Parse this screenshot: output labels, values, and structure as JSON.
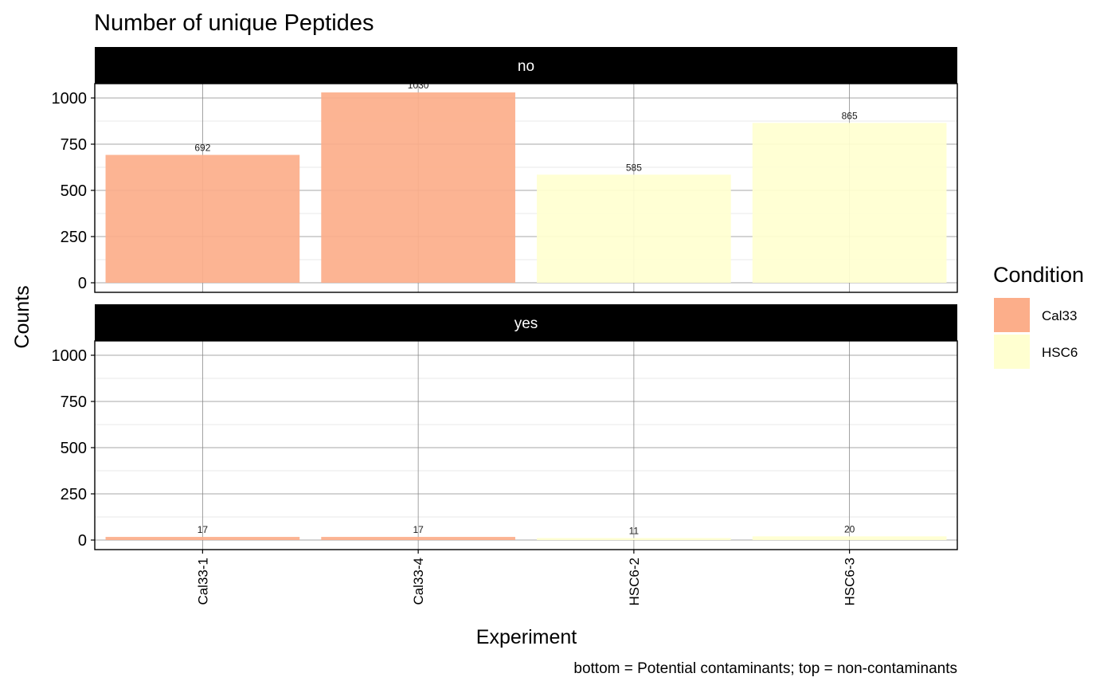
{
  "chart_data": {
    "type": "bar",
    "title": "Number of unique Peptides",
    "xlabel": "Experiment",
    "ylabel": "Counts",
    "caption": "bottom = Potential contaminants; top = non-contaminants",
    "categories": [
      "Cal33-1",
      "Cal33-4",
      "HSC6-2",
      "HSC6-3"
    ],
    "condition": [
      "Cal33",
      "Cal33",
      "HSC6",
      "HSC6"
    ],
    "ylim": [
      0,
      1100
    ],
    "yticks": [
      0,
      250,
      500,
      750,
      1000
    ],
    "grid": true,
    "facets": [
      {
        "label": "no",
        "values": [
          692,
          1030,
          585,
          865
        ]
      },
      {
        "label": "yes",
        "values": [
          17,
          17,
          11,
          20
        ]
      }
    ],
    "legend": {
      "title": "Condition",
      "position": "right",
      "entries": [
        {
          "name": "Cal33",
          "color": "#FCAE8A"
        },
        {
          "name": "HSC6",
          "color": "#FFFFD0"
        }
      ]
    },
    "strip_color": "#000000"
  }
}
